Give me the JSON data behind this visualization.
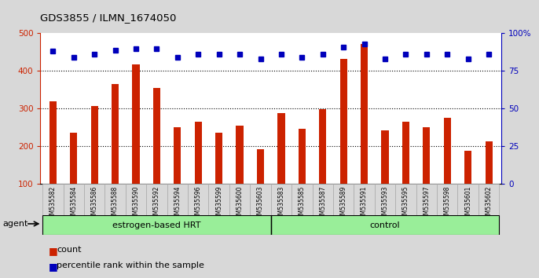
{
  "title": "GDS3855 / ILMN_1674050",
  "samples": [
    "GSM535582",
    "GSM535584",
    "GSM535586",
    "GSM535588",
    "GSM535590",
    "GSM535592",
    "GSM535594",
    "GSM535596",
    "GSM535599",
    "GSM535600",
    "GSM535603",
    "GSM535583",
    "GSM535585",
    "GSM535587",
    "GSM535589",
    "GSM535591",
    "GSM535593",
    "GSM535595",
    "GSM535597",
    "GSM535598",
    "GSM535601",
    "GSM535602"
  ],
  "counts": [
    320,
    235,
    307,
    365,
    418,
    355,
    250,
    265,
    235,
    255,
    192,
    288,
    245,
    298,
    432,
    472,
    242,
    265,
    250,
    275,
    188,
    212
  ],
  "percentiles": [
    88,
    84,
    86,
    89,
    90,
    90,
    84,
    86,
    86,
    86,
    83,
    86,
    84,
    86,
    91,
    93,
    83,
    86,
    86,
    86,
    83,
    86
  ],
  "groups": [
    "estrogen-based HRT",
    "estrogen-based HRT",
    "estrogen-based HRT",
    "estrogen-based HRT",
    "estrogen-based HRT",
    "estrogen-based HRT",
    "estrogen-based HRT",
    "estrogen-based HRT",
    "estrogen-based HRT",
    "estrogen-based HRT",
    "estrogen-based HRT",
    "control",
    "control",
    "control",
    "control",
    "control",
    "control",
    "control",
    "control",
    "control",
    "control",
    "control"
  ],
  "bar_color": "#CC2200",
  "dot_color": "#0000BB",
  "ylim_left": [
    100,
    500
  ],
  "ylim_right": [
    0,
    100
  ],
  "yticks_left": [
    100,
    200,
    300,
    400,
    500
  ],
  "yticks_right": [
    0,
    25,
    50,
    75,
    100
  ],
  "fig_bg_color": "#d8d8d8",
  "plot_bg_color": "#ffffff",
  "tick_bg_color": "#d0d0d0",
  "green_color": "#99ee99",
  "agent_label": "agent",
  "legend_count": "count",
  "legend_pct": "percentile rank within the sample",
  "n_estrogen": 11,
  "n_control": 11
}
